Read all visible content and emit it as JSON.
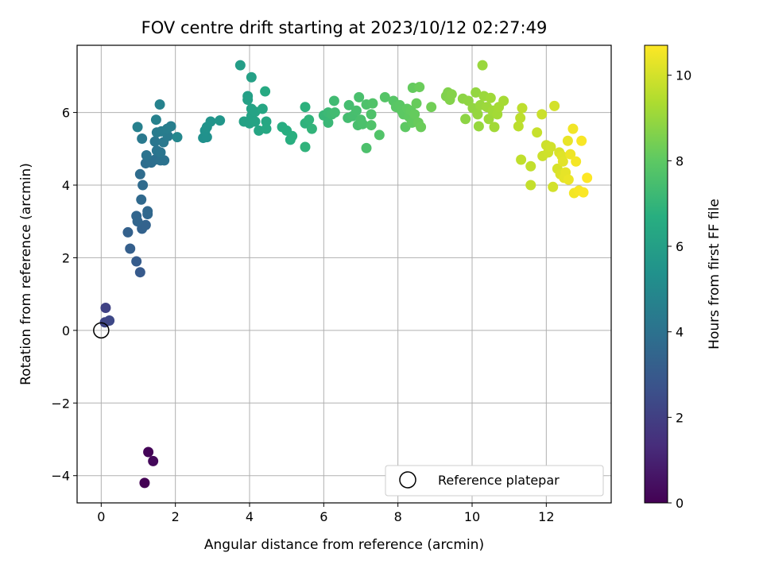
{
  "chart_data": {
    "type": "scatter",
    "title": "FOV centre drift starting at 2023/10/12 02:27:49",
    "xlabel": "Angular distance from reference (arcmin)",
    "ylabel": "Rotation from reference (arcmin)",
    "xlim": [
      -0.65,
      13.75
    ],
    "ylim": [
      -4.75,
      7.85
    ],
    "xticks": [
      0,
      2,
      4,
      6,
      8,
      10,
      12
    ],
    "yticks": [
      -4,
      -2,
      0,
      2,
      4,
      6
    ],
    "grid": true,
    "colormap": "viridis",
    "colorbar": {
      "label": "Hours from first FF file",
      "min": 0,
      "max": 10.7,
      "ticks": [
        0,
        2,
        4,
        6,
        8,
        10
      ]
    },
    "legend": {
      "label": "Reference platepar",
      "placement": "bottom-right"
    },
    "reference_point": {
      "x": 0,
      "y": 0
    },
    "series": [
      {
        "points": [
          {
            "x": 1.17,
            "y": -4.2,
            "t": 0.0
          },
          {
            "x": 1.27,
            "y": -3.35,
            "t": 0.1
          },
          {
            "x": 1.4,
            "y": -3.6,
            "t": 0.2
          },
          {
            "x": 0.12,
            "y": 0.62,
            "t": 2.1
          },
          {
            "x": 0.22,
            "y": 0.27,
            "t": 2.3
          },
          {
            "x": 0.1,
            "y": 0.22,
            "t": 2.2
          },
          {
            "x": 1.05,
            "y": 1.6,
            "t": 3.0
          },
          {
            "x": 0.95,
            "y": 1.9,
            "t": 3.1
          },
          {
            "x": 0.78,
            "y": 2.25,
            "t": 3.2
          },
          {
            "x": 0.72,
            "y": 2.7,
            "t": 3.3
          },
          {
            "x": 1.1,
            "y": 2.8,
            "t": 3.35
          },
          {
            "x": 1.2,
            "y": 2.9,
            "t": 3.4
          },
          {
            "x": 0.98,
            "y": 3.0,
            "t": 3.45
          },
          {
            "x": 0.95,
            "y": 3.15,
            "t": 3.5
          },
          {
            "x": 1.25,
            "y": 3.2,
            "t": 3.55
          },
          {
            "x": 1.25,
            "y": 3.28,
            "t": 3.6
          },
          {
            "x": 1.08,
            "y": 3.6,
            "t": 3.65
          },
          {
            "x": 1.12,
            "y": 4.0,
            "t": 3.7
          },
          {
            "x": 1.05,
            "y": 4.3,
            "t": 3.75
          },
          {
            "x": 1.2,
            "y": 4.6,
            "t": 3.8
          },
          {
            "x": 1.35,
            "y": 4.62,
            "t": 3.85
          },
          {
            "x": 1.45,
            "y": 4.7,
            "t": 3.9
          },
          {
            "x": 1.6,
            "y": 4.68,
            "t": 3.95
          },
          {
            "x": 1.7,
            "y": 4.68,
            "t": 4.0
          },
          {
            "x": 1.22,
            "y": 4.82,
            "t": 4.05
          },
          {
            "x": 1.5,
            "y": 4.95,
            "t": 4.1
          },
          {
            "x": 1.6,
            "y": 4.9,
            "t": 4.15
          },
          {
            "x": 1.45,
            "y": 5.2,
            "t": 4.2
          },
          {
            "x": 1.68,
            "y": 5.18,
            "t": 4.25
          },
          {
            "x": 1.1,
            "y": 5.28,
            "t": 4.3
          },
          {
            "x": 1.8,
            "y": 5.35,
            "t": 4.35
          },
          {
            "x": 1.5,
            "y": 5.45,
            "t": 4.4
          },
          {
            "x": 1.62,
            "y": 5.48,
            "t": 4.45
          },
          {
            "x": 1.78,
            "y": 5.55,
            "t": 4.5
          },
          {
            "x": 1.88,
            "y": 5.62,
            "t": 4.55
          },
          {
            "x": 0.98,
            "y": 5.6,
            "t": 4.6
          },
          {
            "x": 1.48,
            "y": 5.8,
            "t": 4.65
          },
          {
            "x": 1.58,
            "y": 6.22,
            "t": 4.7
          },
          {
            "x": 2.05,
            "y": 5.32,
            "t": 4.9
          },
          {
            "x": 2.75,
            "y": 5.3,
            "t": 5.3
          },
          {
            "x": 2.85,
            "y": 5.32,
            "t": 5.35
          },
          {
            "x": 2.8,
            "y": 5.5,
            "t": 5.4
          },
          {
            "x": 2.85,
            "y": 5.6,
            "t": 5.45
          },
          {
            "x": 2.95,
            "y": 5.75,
            "t": 5.5
          },
          {
            "x": 3.2,
            "y": 5.78,
            "t": 5.6
          },
          {
            "x": 3.75,
            "y": 7.3,
            "t": 5.9
          },
          {
            "x": 3.95,
            "y": 6.45,
            "t": 6.0
          },
          {
            "x": 3.95,
            "y": 6.35,
            "t": 6.02
          },
          {
            "x": 4.05,
            "y": 6.97,
            "t": 6.05
          },
          {
            "x": 3.85,
            "y": 5.75,
            "t": 6.08
          },
          {
            "x": 4.0,
            "y": 5.7,
            "t": 6.1
          },
          {
            "x": 4.05,
            "y": 5.9,
            "t": 6.12
          },
          {
            "x": 4.05,
            "y": 6.1,
            "t": 6.15
          },
          {
            "x": 4.15,
            "y": 6.02,
            "t": 6.18
          },
          {
            "x": 4.15,
            "y": 5.75,
            "t": 6.2
          },
          {
            "x": 4.25,
            "y": 5.5,
            "t": 6.25
          },
          {
            "x": 4.35,
            "y": 6.1,
            "t": 6.3
          },
          {
            "x": 4.45,
            "y": 5.75,
            "t": 6.35
          },
          {
            "x": 4.45,
            "y": 5.55,
            "t": 6.4
          },
          {
            "x": 4.42,
            "y": 6.58,
            "t": 6.45
          },
          {
            "x": 4.88,
            "y": 5.6,
            "t": 6.6
          },
          {
            "x": 5.0,
            "y": 5.5,
            "t": 6.65
          },
          {
            "x": 5.1,
            "y": 5.25,
            "t": 6.7
          },
          {
            "x": 5.15,
            "y": 5.35,
            "t": 6.72
          },
          {
            "x": 5.5,
            "y": 6.15,
            "t": 6.8
          },
          {
            "x": 5.5,
            "y": 5.7,
            "t": 6.85
          },
          {
            "x": 5.5,
            "y": 5.05,
            "t": 6.9
          },
          {
            "x": 5.6,
            "y": 5.8,
            "t": 6.92
          },
          {
            "x": 5.68,
            "y": 5.55,
            "t": 6.95
          },
          {
            "x": 6.0,
            "y": 5.92,
            "t": 7.1
          },
          {
            "x": 6.12,
            "y": 5.72,
            "t": 7.15
          },
          {
            "x": 6.12,
            "y": 6.0,
            "t": 7.2
          },
          {
            "x": 6.22,
            "y": 5.95,
            "t": 7.25
          },
          {
            "x": 6.28,
            "y": 6.32,
            "t": 7.3
          },
          {
            "x": 6.3,
            "y": 6.0,
            "t": 7.32
          },
          {
            "x": 6.65,
            "y": 5.85,
            "t": 7.4
          },
          {
            "x": 6.68,
            "y": 6.2,
            "t": 7.42
          },
          {
            "x": 6.78,
            "y": 5.9,
            "t": 7.45
          },
          {
            "x": 6.88,
            "y": 6.05,
            "t": 7.48
          },
          {
            "x": 6.92,
            "y": 5.65,
            "t": 7.5
          },
          {
            "x": 6.95,
            "y": 6.42,
            "t": 7.52
          },
          {
            "x": 7.0,
            "y": 5.8,
            "t": 7.55
          },
          {
            "x": 7.05,
            "y": 5.68,
            "t": 7.58
          },
          {
            "x": 7.15,
            "y": 5.02,
            "t": 7.6
          },
          {
            "x": 7.15,
            "y": 6.22,
            "t": 7.62
          },
          {
            "x": 7.28,
            "y": 5.95,
            "t": 7.65
          },
          {
            "x": 7.28,
            "y": 5.65,
            "t": 7.68
          },
          {
            "x": 7.32,
            "y": 6.25,
            "t": 7.7
          },
          {
            "x": 7.5,
            "y": 5.38,
            "t": 7.72
          },
          {
            "x": 7.65,
            "y": 6.42,
            "t": 7.8
          },
          {
            "x": 7.88,
            "y": 6.32,
            "t": 7.85
          },
          {
            "x": 7.95,
            "y": 6.15,
            "t": 7.9
          },
          {
            "x": 8.05,
            "y": 6.2,
            "t": 7.92
          },
          {
            "x": 8.1,
            "y": 6.05,
            "t": 7.95
          },
          {
            "x": 8.15,
            "y": 5.95,
            "t": 7.98
          },
          {
            "x": 8.2,
            "y": 5.6,
            "t": 8.0
          },
          {
            "x": 8.25,
            "y": 6.1,
            "t": 8.02
          },
          {
            "x": 8.3,
            "y": 5.88,
            "t": 8.05
          },
          {
            "x": 8.35,
            "y": 6.05,
            "t": 8.08
          },
          {
            "x": 8.38,
            "y": 5.72,
            "t": 8.1
          },
          {
            "x": 8.4,
            "y": 6.68,
            "t": 8.12
          },
          {
            "x": 8.45,
            "y": 5.95,
            "t": 8.15
          },
          {
            "x": 8.5,
            "y": 6.25,
            "t": 8.18
          },
          {
            "x": 8.55,
            "y": 5.72,
            "t": 8.2
          },
          {
            "x": 8.58,
            "y": 6.7,
            "t": 8.22
          },
          {
            "x": 8.62,
            "y": 5.6,
            "t": 8.25
          },
          {
            "x": 8.9,
            "y": 6.15,
            "t": 8.35
          },
          {
            "x": 9.3,
            "y": 6.45,
            "t": 8.6
          },
          {
            "x": 9.35,
            "y": 6.55,
            "t": 8.62
          },
          {
            "x": 9.4,
            "y": 6.35,
            "t": 8.65
          },
          {
            "x": 9.45,
            "y": 6.5,
            "t": 8.68
          },
          {
            "x": 9.75,
            "y": 6.38,
            "t": 8.8
          },
          {
            "x": 9.82,
            "y": 5.82,
            "t": 8.82
          },
          {
            "x": 9.9,
            "y": 6.32,
            "t": 8.85
          },
          {
            "x": 10.02,
            "y": 6.12,
            "t": 8.9
          },
          {
            "x": 10.1,
            "y": 6.55,
            "t": 8.92
          },
          {
            "x": 10.15,
            "y": 5.95,
            "t": 8.95
          },
          {
            "x": 10.18,
            "y": 5.62,
            "t": 8.98
          },
          {
            "x": 10.22,
            "y": 6.2,
            "t": 9.0
          },
          {
            "x": 10.28,
            "y": 7.3,
            "t": 9.02
          },
          {
            "x": 10.32,
            "y": 6.45,
            "t": 9.05
          },
          {
            "x": 10.4,
            "y": 6.15,
            "t": 9.08
          },
          {
            "x": 10.45,
            "y": 5.82,
            "t": 9.1
          },
          {
            "x": 10.5,
            "y": 6.4,
            "t": 9.12
          },
          {
            "x": 10.55,
            "y": 6.05,
            "t": 9.15
          },
          {
            "x": 10.6,
            "y": 5.6,
            "t": 9.18
          },
          {
            "x": 10.68,
            "y": 5.95,
            "t": 9.2
          },
          {
            "x": 10.72,
            "y": 6.15,
            "t": 9.22
          },
          {
            "x": 10.85,
            "y": 6.32,
            "t": 9.25
          },
          {
            "x": 11.25,
            "y": 5.62,
            "t": 9.6
          },
          {
            "x": 11.3,
            "y": 5.85,
            "t": 9.62
          },
          {
            "x": 11.35,
            "y": 6.12,
            "t": 9.65
          },
          {
            "x": 11.32,
            "y": 4.7,
            "t": 9.68
          },
          {
            "x": 11.58,
            "y": 4.52,
            "t": 9.72
          },
          {
            "x": 11.58,
            "y": 4.0,
            "t": 9.75
          },
          {
            "x": 11.75,
            "y": 5.45,
            "t": 9.8
          },
          {
            "x": 11.88,
            "y": 5.95,
            "t": 9.85
          },
          {
            "x": 11.9,
            "y": 4.8,
            "t": 9.88
          },
          {
            "x": 12.0,
            "y": 5.1,
            "t": 9.9
          },
          {
            "x": 12.05,
            "y": 4.9,
            "t": 9.92
          },
          {
            "x": 12.12,
            "y": 5.05,
            "t": 9.95
          },
          {
            "x": 12.18,
            "y": 3.95,
            "t": 9.98
          },
          {
            "x": 12.22,
            "y": 6.18,
            "t": 10.0
          },
          {
            "x": 12.3,
            "y": 4.45,
            "t": 10.05
          },
          {
            "x": 12.35,
            "y": 4.9,
            "t": 10.1
          },
          {
            "x": 12.38,
            "y": 4.3,
            "t": 10.15
          },
          {
            "x": 12.42,
            "y": 4.8,
            "t": 10.2
          },
          {
            "x": 12.45,
            "y": 4.65,
            "t": 10.25
          },
          {
            "x": 12.48,
            "y": 4.2,
            "t": 10.3
          },
          {
            "x": 12.52,
            "y": 4.35,
            "t": 10.32
          },
          {
            "x": 12.58,
            "y": 5.22,
            "t": 10.35
          },
          {
            "x": 12.6,
            "y": 4.15,
            "t": 10.4
          },
          {
            "x": 12.65,
            "y": 4.85,
            "t": 10.45
          },
          {
            "x": 12.72,
            "y": 5.55,
            "t": 10.5
          },
          {
            "x": 12.75,
            "y": 3.78,
            "t": 10.52
          },
          {
            "x": 12.8,
            "y": 4.65,
            "t": 10.55
          },
          {
            "x": 12.88,
            "y": 3.85,
            "t": 10.6
          },
          {
            "x": 12.95,
            "y": 5.22,
            "t": 10.62
          },
          {
            "x": 13.0,
            "y": 3.8,
            "t": 10.65
          },
          {
            "x": 13.1,
            "y": 4.2,
            "t": 10.7
          }
        ]
      }
    ]
  }
}
